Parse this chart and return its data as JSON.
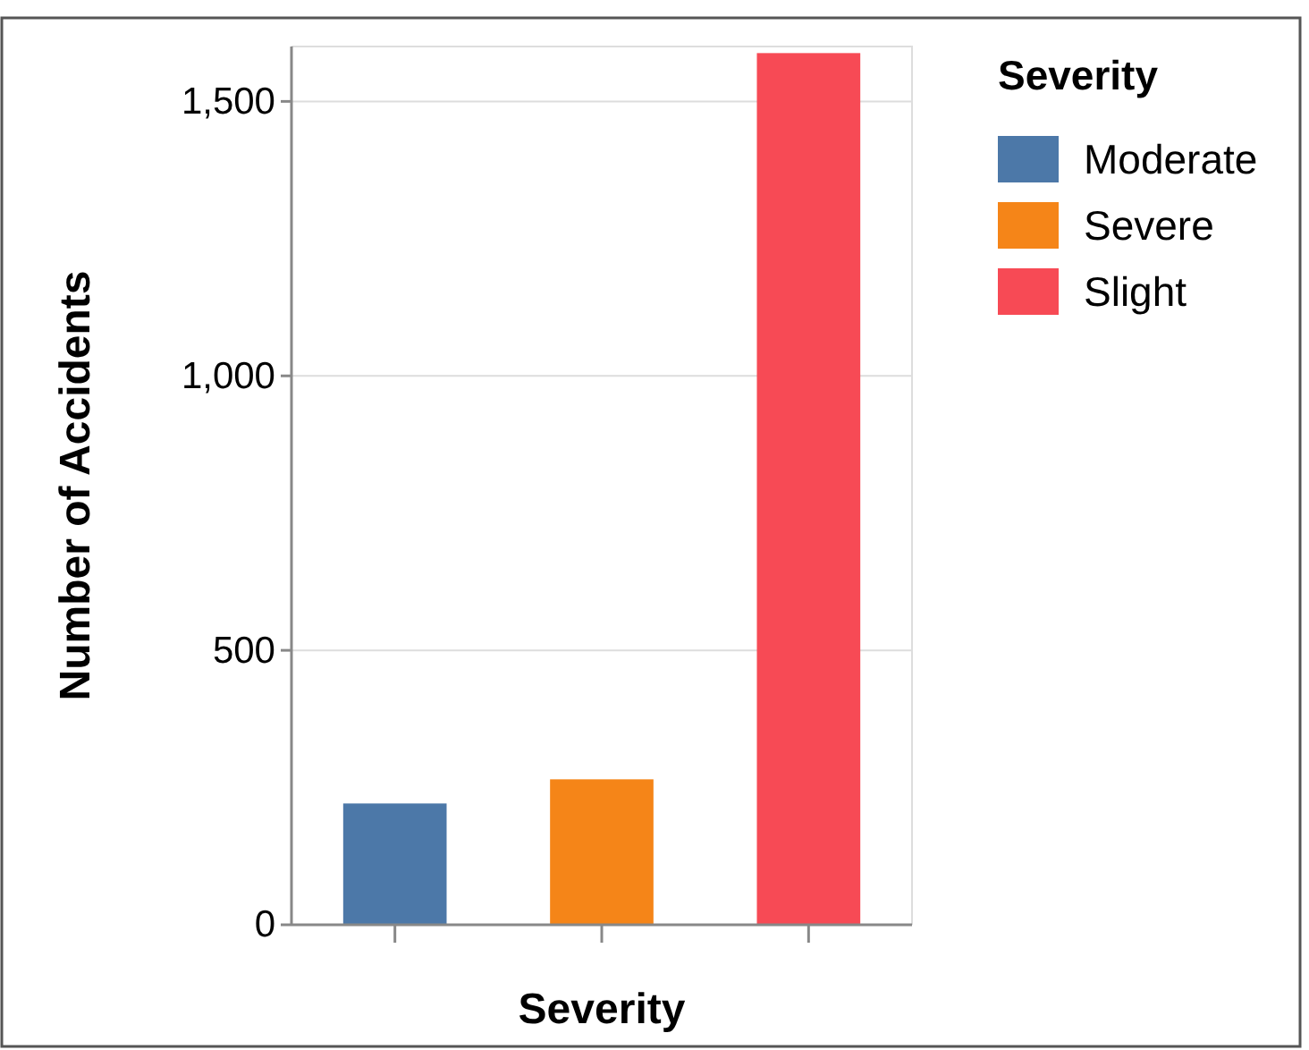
{
  "chart_data": {
    "type": "bar",
    "stacked": true,
    "xlabel": "Severity",
    "ylabel": "Number of Accidents",
    "legend_title": "Severity",
    "categories": [
      null,
      null,
      null
    ],
    "series": [
      {
        "name": "Moderate",
        "color": "#4c78a8",
        "values": [
          221,
          null,
          null
        ]
      },
      {
        "name": "Severe",
        "color": "#f58518",
        "values": [
          null,
          265,
          null
        ]
      },
      {
        "name": "Slight",
        "color": "#f74a55",
        "values": [
          null,
          null,
          1588
        ]
      }
    ],
    "ylim": [
      0,
      1600
    ],
    "yticks": [
      0,
      {
        "value": 500,
        "label": "500"
      },
      {
        "value": 1000,
        "label": "1,000"
      },
      {
        "value": 1500,
        "label": "1,500"
      }
    ],
    "grid": "y",
    "legend": "top right"
  }
}
